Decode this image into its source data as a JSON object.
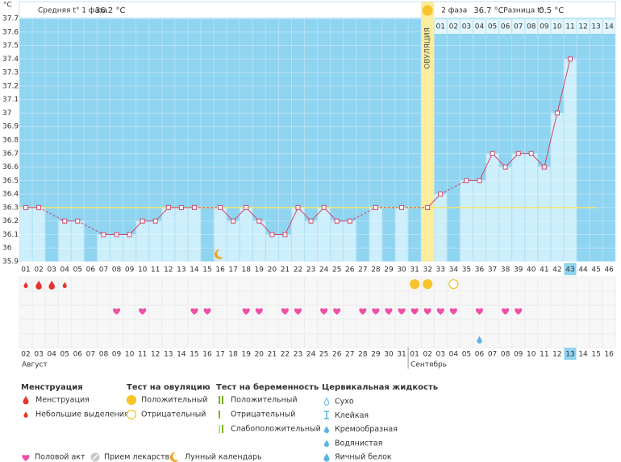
{
  "chart_data": {
    "type": "line",
    "y_unit": "°C",
    "header": {
      "phase1_label": "Средняя t° 1 фаза",
      "phase1_value": "36.2 °C",
      "phase2_label": "2 фаза",
      "phase2_value": "36.7 °C",
      "diff_label": "Разница t°",
      "diff_value": "0.5 °C"
    },
    "categories": [
      "01",
      "02",
      "03",
      "04",
      "05",
      "06",
      "07",
      "08",
      "09",
      "10",
      "11",
      "12",
      "13",
      "14",
      "15",
      "16",
      "17",
      "18",
      "19",
      "20",
      "21",
      "22",
      "23",
      "24",
      "25",
      "26",
      "27",
      "28",
      "29",
      "30",
      "31",
      "32",
      "33",
      "34",
      "35",
      "36",
      "37",
      "38",
      "39",
      "40",
      "41",
      "42",
      "43",
      "44",
      "45",
      "46"
    ],
    "values": [
      36.3,
      36.3,
      null,
      36.2,
      36.2,
      null,
      36.1,
      36.1,
      36.1,
      36.2,
      36.2,
      36.3,
      36.3,
      36.3,
      null,
      36.3,
      36.2,
      36.3,
      36.2,
      36.1,
      36.1,
      36.3,
      36.2,
      36.3,
      36.2,
      36.2,
      null,
      36.3,
      null,
      36.3,
      null,
      36.3,
      36.4,
      null,
      36.5,
      36.5,
      36.7,
      36.6,
      36.7,
      36.7,
      36.6,
      37.0,
      37.4,
      null,
      null,
      null
    ],
    "color": "#d0466b",
    "coverline": 36.3,
    "ylim": [
      35.9,
      37.7
    ],
    "yticks": [
      35.9,
      36,
      36.1,
      36.2,
      36.3,
      36.4,
      36.5,
      36.6,
      36.7,
      36.8,
      36.9,
      37,
      37.1,
      37.2,
      37.3,
      37.4,
      37.5,
      37.6,
      37.7
    ],
    "grid": true,
    "today": "43",
    "ovulation": {
      "day": "32",
      "label": "ОВУЛЯЦИЯ"
    },
    "luteal_days": {
      "start": "33",
      "labels": [
        "01",
        "02",
        "03",
        "04",
        "05",
        "06",
        "07",
        "08",
        "09",
        "10",
        "11",
        "12",
        "13",
        "14"
      ]
    },
    "menstruation": [
      {
        "day": "01",
        "kind": "light"
      },
      {
        "day": "02",
        "kind": "heavy"
      },
      {
        "day": "03",
        "kind": "heavy"
      },
      {
        "day": "04",
        "kind": "light"
      }
    ],
    "ovulation_tests": [
      {
        "day": "31",
        "result": "positive"
      },
      {
        "day": "32",
        "result": "positive"
      },
      {
        "day": "34",
        "result": "negative"
      }
    ],
    "intercourse": [
      "08",
      "10",
      "14",
      "15",
      "18",
      "19",
      "21",
      "22",
      "24",
      "25",
      "27",
      "28",
      "29",
      "30",
      "31",
      "32",
      "33",
      "34",
      "36",
      "38",
      "39"
    ],
    "cervical_fluid": [
      {
        "day": "36",
        "kind": "creamy"
      }
    ],
    "moon": [
      "16"
    ],
    "dates": [
      "02",
      "03",
      "04",
      "05",
      "06",
      "07",
      "08",
      "09",
      "10",
      "11",
      "12",
      "13",
      "14",
      "15",
      "16",
      "17",
      "18",
      "19",
      "20",
      "21",
      "22",
      "23",
      "24",
      "25",
      "26",
      "27",
      "28",
      "29",
      "30",
      "31",
      "01",
      "02",
      "03",
      "04",
      "05",
      "06",
      "07",
      "08",
      "09",
      "10",
      "11",
      "12",
      "13",
      "14",
      "15",
      "16"
    ],
    "date_colors": [
      "#e0245e",
      "#444",
      "#444",
      "#444",
      "#444",
      "#444",
      "#444",
      "#e0245e",
      "#444",
      "#444",
      "#444",
      "#444",
      "#444",
      "#e0245e",
      "#e0245e",
      "#444",
      "#444",
      "#444",
      "#444",
      "#444",
      "#e0245e",
      "#e0245e",
      "#444",
      "#444",
      "#444",
      "#444",
      "#444",
      "#e0245e",
      "#e0245e",
      "#444",
      "#444",
      "#444",
      "#444",
      "#444",
      "#e0245e",
      "#e0245e",
      "#444",
      "#444",
      "#444",
      "#444",
      "#444",
      "#e0245e",
      "#444",
      "#444",
      "#444",
      "#444"
    ],
    "months": [
      "Август",
      "Сентябрь"
    ],
    "legend": {
      "groups": [
        {
          "title": "Менструация",
          "items": [
            "Менструация",
            "Небольшие выделения"
          ]
        },
        {
          "title": "Тест на овуляцию",
          "items": [
            "Положительный",
            "Отрицательный"
          ]
        },
        {
          "title": "Тест на беременность",
          "items": [
            "Положительный",
            "Отрицательный",
            "Слабоположительный"
          ]
        },
        {
          "title": "Цервикальная жидкость",
          "items": [
            "Сухо",
            "Клейкая",
            "Кремообразная",
            "Водянистая",
            "Яичный белок"
          ]
        }
      ],
      "extra": [
        "Половой акт",
        "Прием лекарств",
        "Лунный календарь"
      ]
    }
  }
}
